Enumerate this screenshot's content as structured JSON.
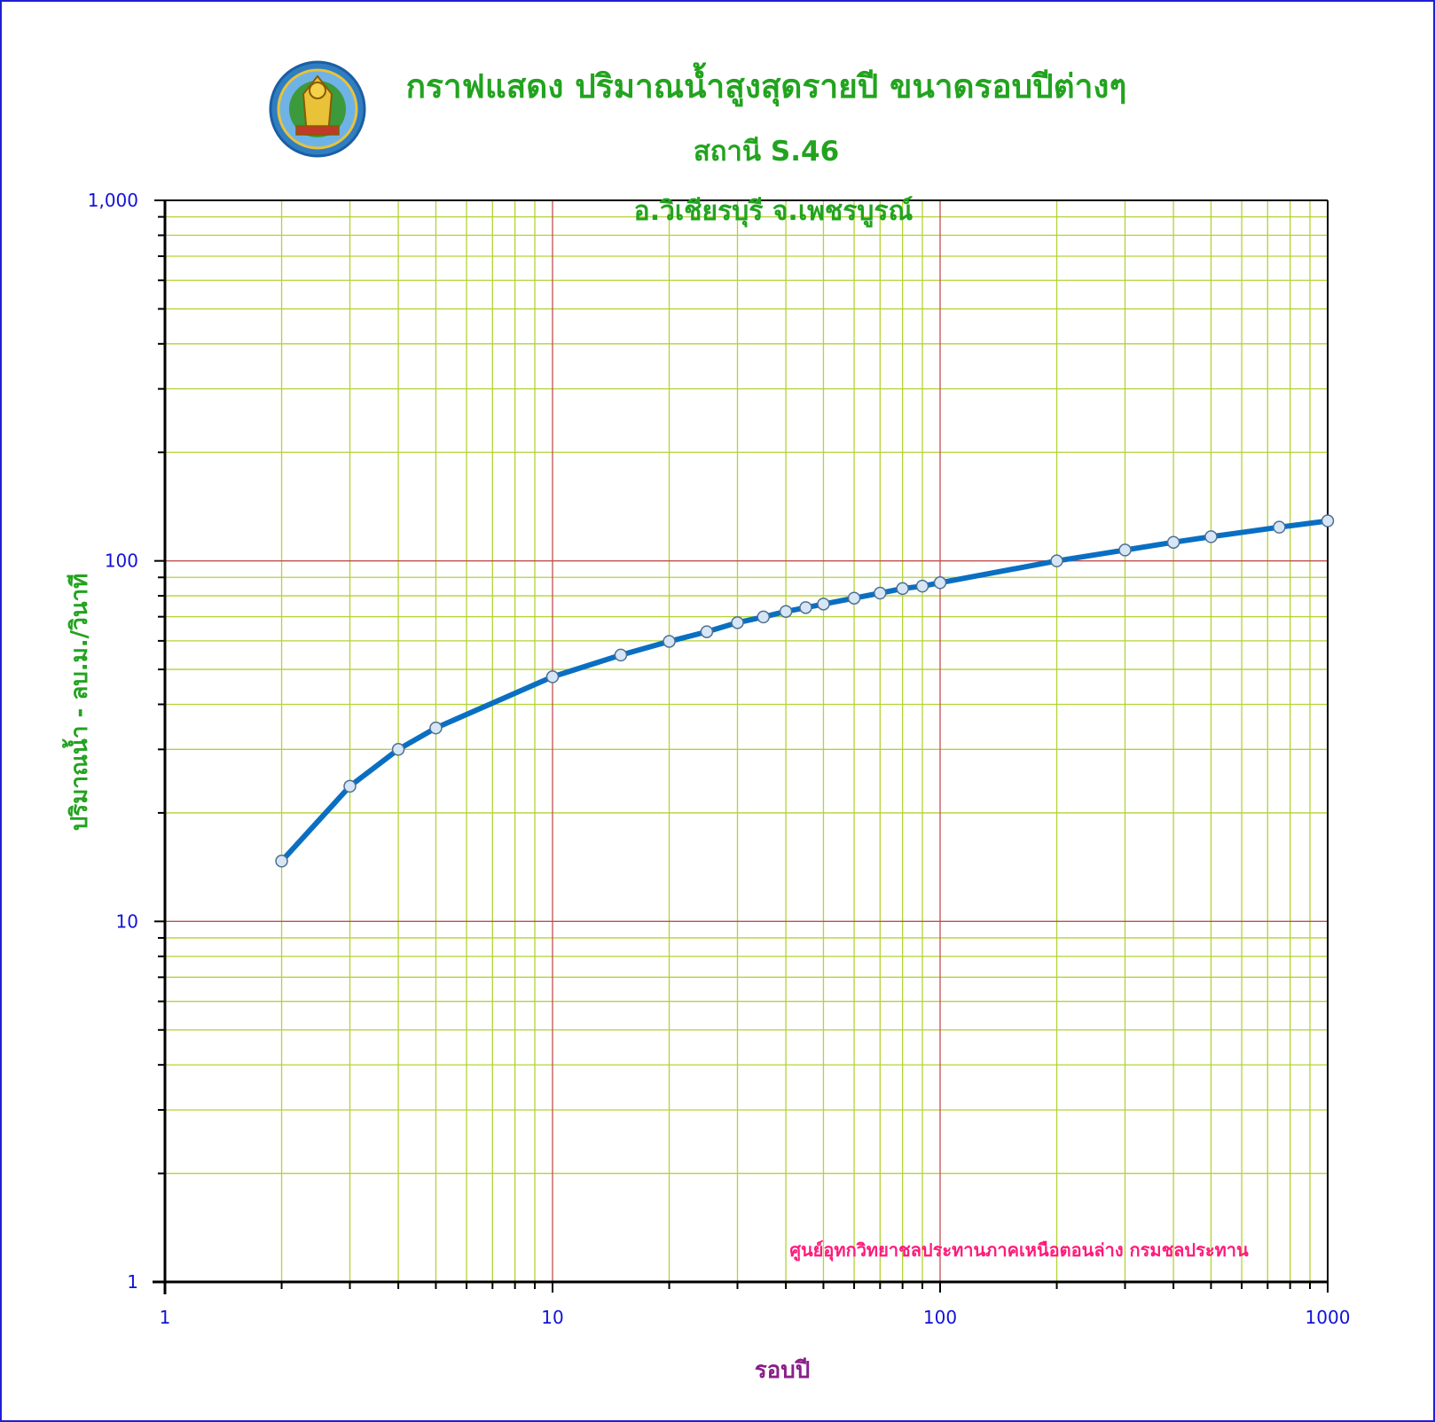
{
  "chart_data": {
    "type": "line",
    "title": "กราฟแสดง ปริมาณน้ำสูงสุดรายปี ขนาดรอบปีต่างๆ",
    "subtitle": "สถานี S.46",
    "location": "อ.วิเชียรบุรี  จ.เพชรบูรณ์",
    "xlabel": "รอบปี",
    "ylabel": "ปริมาณน้ำ  -  ลบ.ม./วินาที",
    "logo_text": "กรมชลประทาน",
    "note": "ศูนย์อุทกวิทยาชลประทานภาคเหนือตอนล่าง  กรมชลประทาน",
    "x_scale": "log",
    "y_scale": "log",
    "xlim": [
      1,
      1000
    ],
    "ylim": [
      1,
      1000
    ],
    "x_tick_labels": [
      "1",
      "10",
      "100",
      "1000"
    ],
    "y_tick_labels": [
      "1",
      "10",
      "100",
      "1,000"
    ],
    "grid": true,
    "colors": {
      "line": "#0a6fc2",
      "marker_fill": "#d6e6f7",
      "marker_edge": "#4f6f8f",
      "minor_grid": "#b3d334",
      "major_grid": "#c0504d",
      "axis_labels": "#1212d8",
      "title": "#22a31f",
      "note": "#ff1a7a",
      "frame": "#1f1fd6"
    },
    "series": [
      {
        "x": [
          2,
          3,
          4,
          5,
          10,
          15,
          20,
          25,
          30,
          35,
          40,
          45,
          50,
          60,
          70,
          80,
          90,
          100,
          200,
          300,
          400,
          500,
          750,
          1000
        ],
        "y": [
          14.7,
          23.7,
          30.0,
          34.4,
          47.7,
          54.8,
          59.8,
          63.6,
          67.4,
          69.9,
          72.4,
          74.2,
          75.9,
          78.8,
          81.4,
          83.8,
          85.1,
          87.0,
          100.0,
          107.2,
          112.6,
          116.7,
          124.0,
          129.1
        ]
      }
    ]
  }
}
